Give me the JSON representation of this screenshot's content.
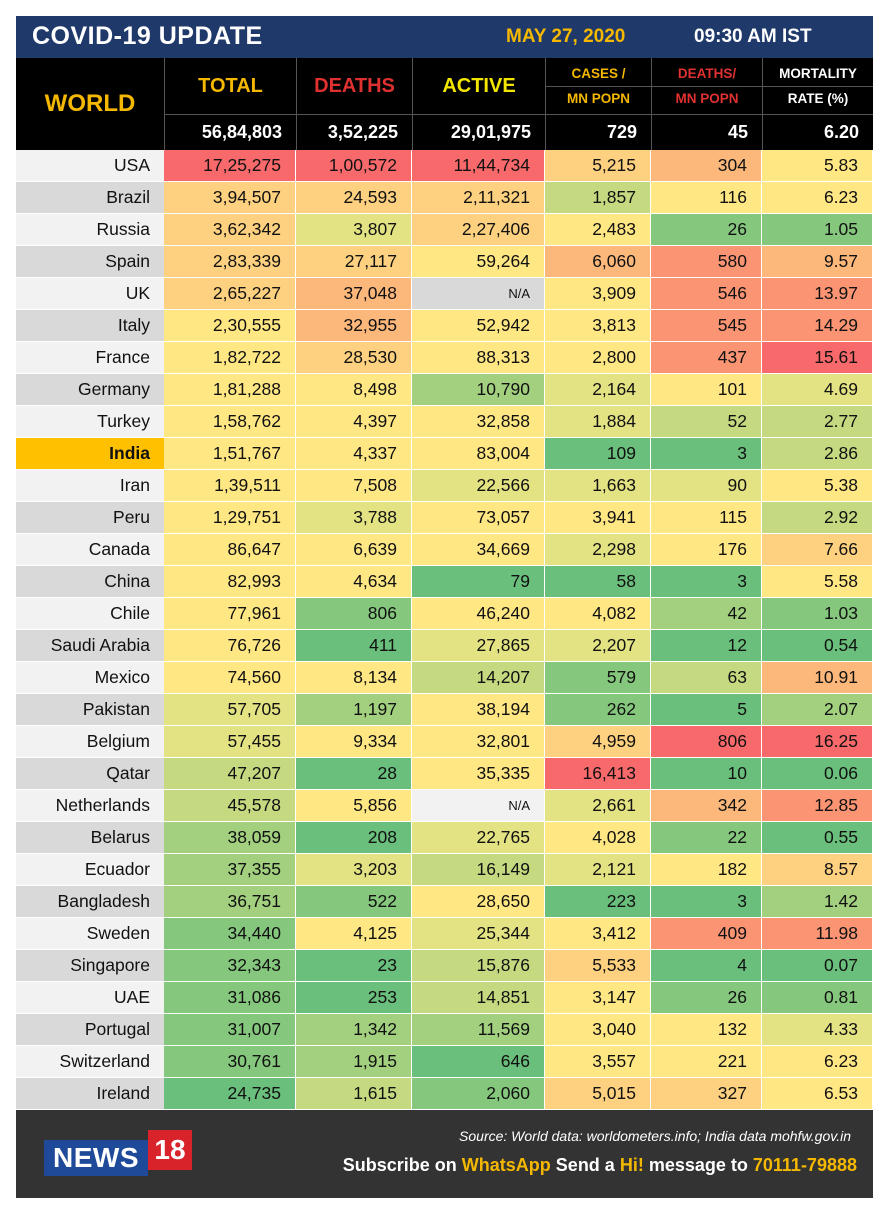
{
  "title": "COVID-19 UPDATE",
  "date": "MAY 27, 2020",
  "time": "09:30 AM IST",
  "header": {
    "world_label": "WORLD",
    "columns": [
      {
        "label": "TOTAL",
        "color": "#f5b800"
      },
      {
        "label": "DEATHS",
        "color": "#e03131"
      },
      {
        "label": "ACTIVE",
        "color": "#f2e600"
      },
      {
        "line1": "CASES /",
        "line2": "MN POPN",
        "color": "#f5b800"
      },
      {
        "line1": "DEATHS/",
        "line2": "MN POPN",
        "color": "#e03131"
      },
      {
        "line1": "MORTALITY",
        "line2": "RATE (%)",
        "color": "#ffffff"
      }
    ],
    "world_totals": [
      "56,84,803",
      "3,52,225",
      "29,01,975",
      "729",
      "45",
      "6.20"
    ]
  },
  "palette": {
    "red": "#f8696b",
    "orange_red": "#fa9473",
    "orange": "#fcb77a",
    "light_orange": "#fdd17f",
    "yellow": "#ffe884",
    "yellow_green": "#e4e383",
    "light_green": "#c5da80",
    "mid_green": "#a2d07f",
    "green": "#85c87d",
    "dark_green": "#69bf7b",
    "grey": "#d9d9d9",
    "white": "#f2f2f2",
    "india_highlight": "#ffc000"
  },
  "rows": [
    {
      "country": "USA",
      "values": [
        "17,25,275",
        "1,00,572",
        "11,44,734",
        "5,215",
        "304",
        "5.83"
      ],
      "colors": [
        "red",
        "red",
        "red",
        "light_orange",
        "orange",
        "yellow"
      ]
    },
    {
      "country": "Brazil",
      "values": [
        "3,94,507",
        "24,593",
        "2,11,321",
        "1,857",
        "116",
        "6.23"
      ],
      "colors": [
        "light_orange",
        "light_orange",
        "light_orange",
        "light_green",
        "yellow",
        "yellow"
      ]
    },
    {
      "country": "Russia",
      "values": [
        "3,62,342",
        "3,807",
        "2,27,406",
        "2,483",
        "26",
        "1.05"
      ],
      "colors": [
        "light_orange",
        "yellow_green",
        "light_orange",
        "yellow",
        "green",
        "green"
      ]
    },
    {
      "country": "Spain",
      "values": [
        "2,83,339",
        "27,117",
        "59,264",
        "6,060",
        "580",
        "9.57"
      ],
      "colors": [
        "light_orange",
        "light_orange",
        "yellow",
        "orange",
        "orange_red",
        "orange"
      ]
    },
    {
      "country": "UK",
      "values": [
        "2,65,227",
        "37,048",
        "N/A",
        "3,909",
        "546",
        "13.97"
      ],
      "colors": [
        "light_orange",
        "orange",
        "grey",
        "yellow",
        "orange_red",
        "orange_red"
      ]
    },
    {
      "country": "Italy",
      "values": [
        "2,30,555",
        "32,955",
        "52,942",
        "3,813",
        "545",
        "14.29"
      ],
      "colors": [
        "yellow",
        "orange",
        "yellow",
        "yellow",
        "orange_red",
        "orange_red"
      ]
    },
    {
      "country": "France",
      "values": [
        "1,82,722",
        "28,530",
        "88,313",
        "2,800",
        "437",
        "15.61"
      ],
      "colors": [
        "yellow",
        "light_orange",
        "yellow",
        "yellow",
        "orange_red",
        "red"
      ]
    },
    {
      "country": "Germany",
      "values": [
        "1,81,288",
        "8,498",
        "10,790",
        "2,164",
        "101",
        "4.69"
      ],
      "colors": [
        "yellow",
        "yellow",
        "mid_green",
        "yellow_green",
        "yellow",
        "yellow_green"
      ]
    },
    {
      "country": "Turkey",
      "values": [
        "1,58,762",
        "4,397",
        "32,858",
        "1,884",
        "52",
        "2.77"
      ],
      "colors": [
        "yellow",
        "yellow",
        "yellow",
        "yellow_green",
        "light_green",
        "light_green"
      ]
    },
    {
      "country": "India",
      "values": [
        "1,51,767",
        "4,337",
        "83,004",
        "109",
        "3",
        "2.86"
      ],
      "colors": [
        "yellow",
        "yellow",
        "yellow",
        "dark_green",
        "dark_green",
        "light_green"
      ],
      "highlight": true
    },
    {
      "country": "Iran",
      "values": [
        "1,39,511",
        "7,508",
        "22,566",
        "1,663",
        "90",
        "5.38"
      ],
      "colors": [
        "yellow",
        "yellow",
        "yellow_green",
        "yellow_green",
        "yellow_green",
        "yellow"
      ]
    },
    {
      "country": "Peru",
      "values": [
        "1,29,751",
        "3,788",
        "73,057",
        "3,941",
        "115",
        "2.92"
      ],
      "colors": [
        "yellow",
        "yellow_green",
        "yellow",
        "yellow",
        "yellow",
        "light_green"
      ]
    },
    {
      "country": "Canada",
      "values": [
        "86,647",
        "6,639",
        "34,669",
        "2,298",
        "176",
        "7.66"
      ],
      "colors": [
        "yellow",
        "yellow",
        "yellow",
        "yellow_green",
        "yellow",
        "light_orange"
      ]
    },
    {
      "country": "China",
      "values": [
        "82,993",
        "4,634",
        "79",
        "58",
        "3",
        "5.58"
      ],
      "colors": [
        "yellow",
        "yellow",
        "dark_green",
        "dark_green",
        "dark_green",
        "yellow"
      ]
    },
    {
      "country": "Chile",
      "values": [
        "77,961",
        "806",
        "46,240",
        "4,082",
        "42",
        "1.03"
      ],
      "colors": [
        "yellow",
        "green",
        "yellow",
        "yellow",
        "mid_green",
        "green"
      ]
    },
    {
      "country": "Saudi Arabia",
      "values": [
        "76,726",
        "411",
        "27,865",
        "2,207",
        "12",
        "0.54"
      ],
      "colors": [
        "yellow",
        "dark_green",
        "yellow_green",
        "yellow_green",
        "dark_green",
        "dark_green"
      ]
    },
    {
      "country": "Mexico",
      "values": [
        "74,560",
        "8,134",
        "14,207",
        "579",
        "63",
        "10.91"
      ],
      "colors": [
        "yellow",
        "yellow",
        "light_green",
        "green",
        "light_green",
        "orange"
      ]
    },
    {
      "country": "Pakistan",
      "values": [
        "57,705",
        "1,197",
        "38,194",
        "262",
        "5",
        "2.07"
      ],
      "colors": [
        "yellow_green",
        "mid_green",
        "yellow",
        "green",
        "dark_green",
        "mid_green"
      ]
    },
    {
      "country": "Belgium",
      "values": [
        "57,455",
        "9,334",
        "32,801",
        "4,959",
        "806",
        "16.25"
      ],
      "colors": [
        "yellow_green",
        "yellow",
        "yellow",
        "light_orange",
        "red",
        "red"
      ]
    },
    {
      "country": "Qatar",
      "values": [
        "47,207",
        "28",
        "35,335",
        "16,413",
        "10",
        "0.06"
      ],
      "colors": [
        "light_green",
        "dark_green",
        "yellow",
        "red",
        "dark_green",
        "dark_green"
      ]
    },
    {
      "country": "Netherlands",
      "values": [
        "45,578",
        "5,856",
        "N/A",
        "2,661",
        "342",
        "12.85"
      ],
      "colors": [
        "light_green",
        "yellow",
        "white",
        "yellow_green",
        "orange",
        "orange_red"
      ]
    },
    {
      "country": "Belarus",
      "values": [
        "38,059",
        "208",
        "22,765",
        "4,028",
        "22",
        "0.55"
      ],
      "colors": [
        "mid_green",
        "dark_green",
        "yellow_green",
        "yellow",
        "green",
        "dark_green"
      ]
    },
    {
      "country": "Ecuador",
      "values": [
        "37,355",
        "3,203",
        "16,149",
        "2,121",
        "182",
        "8.57"
      ],
      "colors": [
        "mid_green",
        "yellow_green",
        "light_green",
        "yellow_green",
        "yellow",
        "light_orange"
      ]
    },
    {
      "country": "Bangladesh",
      "values": [
        "36,751",
        "522",
        "28,650",
        "223",
        "3",
        "1.42"
      ],
      "colors": [
        "mid_green",
        "green",
        "yellow",
        "dark_green",
        "dark_green",
        "mid_green"
      ]
    },
    {
      "country": "Sweden",
      "values": [
        "34,440",
        "4,125",
        "25,344",
        "3,412",
        "409",
        "11.98"
      ],
      "colors": [
        "green",
        "yellow",
        "yellow_green",
        "yellow",
        "orange_red",
        "orange_red"
      ]
    },
    {
      "country": "Singapore",
      "values": [
        "32,343",
        "23",
        "15,876",
        "5,533",
        "4",
        "0.07"
      ],
      "colors": [
        "green",
        "dark_green",
        "light_green",
        "light_orange",
        "dark_green",
        "dark_green"
      ]
    },
    {
      "country": "UAE",
      "values": [
        "31,086",
        "253",
        "14,851",
        "3,147",
        "26",
        "0.81"
      ],
      "colors": [
        "green",
        "dark_green",
        "light_green",
        "yellow",
        "green",
        "green"
      ]
    },
    {
      "country": "Portugal",
      "values": [
        "31,007",
        "1,342",
        "11,569",
        "3,040",
        "132",
        "4.33"
      ],
      "colors": [
        "green",
        "mid_green",
        "mid_green",
        "yellow",
        "yellow",
        "yellow_green"
      ]
    },
    {
      "country": "Switzerland",
      "values": [
        "30,761",
        "1,915",
        "646",
        "3,557",
        "221",
        "6.23"
      ],
      "colors": [
        "green",
        "mid_green",
        "dark_green",
        "yellow",
        "yellow",
        "yellow"
      ]
    },
    {
      "country": "Ireland",
      "values": [
        "24,735",
        "1,615",
        "2,060",
        "5,015",
        "327",
        "6.53"
      ],
      "colors": [
        "dark_green",
        "light_green",
        "green",
        "light_orange",
        "light_orange",
        "yellow"
      ]
    }
  ],
  "footer": {
    "logo_text": "NEWS",
    "logo_number": "18",
    "source": "Source: World data: worldometers.info; India data mohfw.gov.in",
    "subscribe_parts": [
      "Subscribe on ",
      "WhatsApp",
      " Send a ",
      "Hi!",
      " message to ",
      "70111-79888"
    ]
  }
}
